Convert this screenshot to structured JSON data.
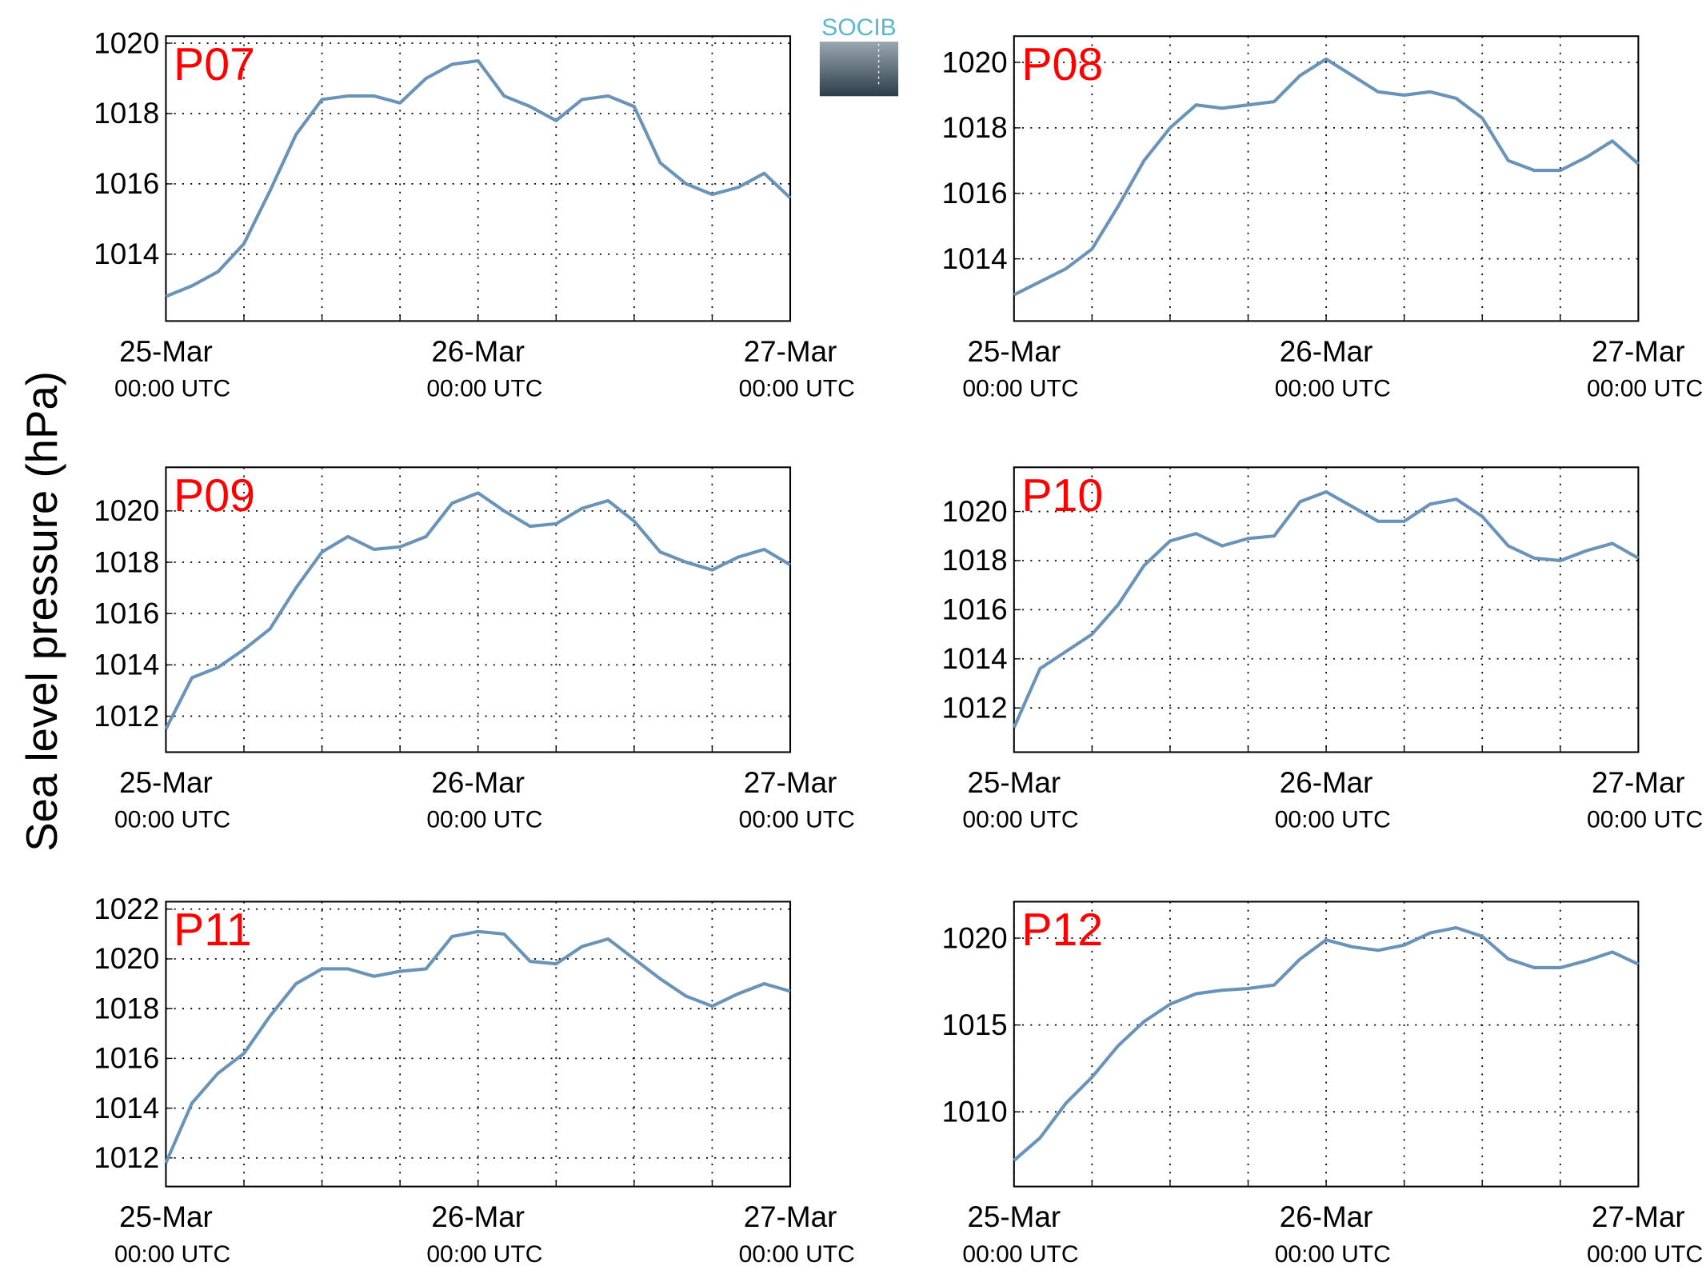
{
  "ylabel": "Sea level pressure (hPa)",
  "logo": "SOCIB",
  "chart_data": [
    {
      "type": "line",
      "title": "P07",
      "x": [
        0,
        2,
        4,
        6,
        8,
        10,
        12,
        14,
        16,
        18,
        20,
        22,
        24,
        26,
        28,
        30,
        32,
        34,
        36,
        38,
        40,
        42,
        44,
        46,
        48
      ],
      "series": [
        {
          "color": "#6a93b8",
          "values": [
            1012.8,
            1013.1,
            1013.5,
            1014.3,
            1015.8,
            1017.4,
            1018.4,
            1018.5,
            1018.5,
            1018.3,
            1019.0,
            1019.4,
            1019.5,
            1018.5,
            1018.2,
            1017.8,
            1018.4,
            1018.5,
            1018.2,
            1016.6,
            1016.0,
            1015.7,
            1015.9,
            1016.3,
            1015.6
          ]
        }
      ],
      "xlim": [
        0,
        48
      ],
      "xticks": [
        {
          "value": 0,
          "label": "25-Mar",
          "sublabel": "00:00 UTC"
        },
        {
          "value": 6,
          "label": null
        },
        {
          "value": 12,
          "label": null
        },
        {
          "value": 18,
          "label": null
        },
        {
          "value": 24,
          "label": "26-Mar",
          "sublabel": "00:00 UTC"
        },
        {
          "value": 30,
          "label": null
        },
        {
          "value": 36,
          "label": null
        },
        {
          "value": 42,
          "label": null
        },
        {
          "value": 48,
          "label": "27-Mar",
          "sublabel": "00:00 UTC"
        }
      ],
      "ylim": [
        1012.1,
        1020.2
      ],
      "yticks": [
        1014,
        1016,
        1018,
        1020
      ],
      "grid": true
    },
    {
      "type": "line",
      "title": "P08",
      "x": [
        0,
        2,
        4,
        6,
        8,
        10,
        12,
        14,
        16,
        18,
        20,
        22,
        24,
        26,
        28,
        30,
        32,
        34,
        36,
        38,
        40,
        42,
        44,
        46,
        48
      ],
      "series": [
        {
          "color": "#6a93b8",
          "values": [
            1012.9,
            1013.3,
            1013.7,
            1014.3,
            1015.6,
            1017.0,
            1018.0,
            1018.7,
            1018.6,
            1018.7,
            1018.8,
            1019.6,
            1020.1,
            1019.6,
            1019.1,
            1019.0,
            1019.1,
            1018.9,
            1018.3,
            1017.0,
            1016.7,
            1016.7,
            1017.1,
            1017.6,
            1016.9
          ]
        }
      ],
      "xlim": [
        0,
        48
      ],
      "xticks": [
        {
          "value": 0,
          "label": "25-Mar",
          "sublabel": "00:00 UTC"
        },
        {
          "value": 6,
          "label": null
        },
        {
          "value": 12,
          "label": null
        },
        {
          "value": 18,
          "label": null
        },
        {
          "value": 24,
          "label": "26-Mar",
          "sublabel": "00:00 UTC"
        },
        {
          "value": 30,
          "label": null
        },
        {
          "value": 36,
          "label": null
        },
        {
          "value": 42,
          "label": null
        },
        {
          "value": 48,
          "label": "27-Mar",
          "sublabel": "00:00 UTC"
        }
      ],
      "ylim": [
        1012.1,
        1020.8
      ],
      "yticks": [
        1014,
        1016,
        1018,
        1020
      ],
      "grid": true
    },
    {
      "type": "line",
      "title": "P09",
      "x": [
        0,
        2,
        4,
        6,
        8,
        10,
        12,
        14,
        16,
        18,
        20,
        22,
        24,
        26,
        28,
        30,
        32,
        34,
        36,
        38,
        40,
        42,
        44,
        46,
        48
      ],
      "series": [
        {
          "color": "#6a93b8",
          "values": [
            1011.5,
            1013.5,
            1013.9,
            1014.6,
            1015.4,
            1017.0,
            1018.4,
            1019.0,
            1018.5,
            1018.6,
            1019.0,
            1020.3,
            1020.7,
            1020.0,
            1019.4,
            1019.5,
            1020.1,
            1020.4,
            1019.6,
            1018.4,
            1018.0,
            1017.7,
            1018.2,
            1018.5,
            1017.9
          ]
        }
      ],
      "xlim": [
        0,
        48
      ],
      "xticks": [
        {
          "value": 0,
          "label": "25-Mar",
          "sublabel": "00:00 UTC"
        },
        {
          "value": 6,
          "label": null
        },
        {
          "value": 12,
          "label": null
        },
        {
          "value": 18,
          "label": null
        },
        {
          "value": 24,
          "label": "26-Mar",
          "sublabel": "00:00 UTC"
        },
        {
          "value": 30,
          "label": null
        },
        {
          "value": 36,
          "label": null
        },
        {
          "value": 42,
          "label": null
        },
        {
          "value": 48,
          "label": "27-Mar",
          "sublabel": "00:00 UTC"
        }
      ],
      "ylim": [
        1010.6,
        1021.7
      ],
      "yticks": [
        1012,
        1014,
        1016,
        1018,
        1020
      ],
      "grid": true
    },
    {
      "type": "line",
      "title": "P10",
      "x": [
        0,
        2,
        4,
        6,
        8,
        10,
        12,
        14,
        16,
        18,
        20,
        22,
        24,
        26,
        28,
        30,
        32,
        34,
        36,
        38,
        40,
        42,
        44,
        46,
        48
      ],
      "series": [
        {
          "color": "#6a93b8",
          "values": [
            1011.2,
            1013.6,
            1014.3,
            1015.0,
            1016.2,
            1017.8,
            1018.8,
            1019.1,
            1018.6,
            1018.9,
            1019.0,
            1020.4,
            1020.8,
            1020.2,
            1019.6,
            1019.6,
            1020.3,
            1020.5,
            1019.8,
            1018.6,
            1018.1,
            1018.0,
            1018.4,
            1018.7,
            1018.1
          ]
        }
      ],
      "xlim": [
        0,
        48
      ],
      "xticks": [
        {
          "value": 0,
          "label": "25-Mar",
          "sublabel": "00:00 UTC"
        },
        {
          "value": 6,
          "label": null
        },
        {
          "value": 12,
          "label": null
        },
        {
          "value": 18,
          "label": null
        },
        {
          "value": 24,
          "label": "26-Mar",
          "sublabel": "00:00 UTC"
        },
        {
          "value": 30,
          "label": null
        },
        {
          "value": 36,
          "label": null
        },
        {
          "value": 42,
          "label": null
        },
        {
          "value": 48,
          "label": "27-Mar",
          "sublabel": "00:00 UTC"
        }
      ],
      "ylim": [
        1010.2,
        1021.8
      ],
      "yticks": [
        1012,
        1014,
        1016,
        1018,
        1020
      ],
      "grid": true
    },
    {
      "type": "line",
      "title": "P11",
      "x": [
        0,
        2,
        4,
        6,
        8,
        10,
        12,
        14,
        16,
        18,
        20,
        22,
        24,
        26,
        28,
        30,
        32,
        34,
        36,
        38,
        40,
        42,
        44,
        46,
        48
      ],
      "series": [
        {
          "color": "#6a93b8",
          "values": [
            1011.8,
            1014.2,
            1015.4,
            1016.2,
            1017.7,
            1019.0,
            1019.6,
            1019.6,
            1019.3,
            1019.5,
            1019.6,
            1020.9,
            1021.1,
            1021.0,
            1019.9,
            1019.8,
            1020.5,
            1020.8,
            1020.0,
            1019.2,
            1018.5,
            1018.1,
            1018.6,
            1019.0,
            1018.7
          ]
        }
      ],
      "xlim": [
        0,
        48
      ],
      "xticks": [
        {
          "value": 0,
          "label": "25-Mar",
          "sublabel": "00:00 UTC"
        },
        {
          "value": 6,
          "label": null
        },
        {
          "value": 12,
          "label": null
        },
        {
          "value": 18,
          "label": null
        },
        {
          "value": 24,
          "label": "26-Mar",
          "sublabel": "00:00 UTC"
        },
        {
          "value": 30,
          "label": null
        },
        {
          "value": 36,
          "label": null
        },
        {
          "value": 42,
          "label": null
        },
        {
          "value": 48,
          "label": "27-Mar",
          "sublabel": "00:00 UTC"
        }
      ],
      "ylim": [
        1010.85,
        1022.3
      ],
      "yticks": [
        1012,
        1014,
        1016,
        1018,
        1020,
        1022
      ],
      "grid": true
    },
    {
      "type": "line",
      "title": "P12",
      "x": [
        0,
        2,
        4,
        6,
        8,
        10,
        12,
        14,
        16,
        18,
        20,
        22,
        24,
        26,
        28,
        30,
        32,
        34,
        36,
        38,
        40,
        42,
        44,
        46,
        48
      ],
      "series": [
        {
          "color": "#6a93b8",
          "values": [
            1007.2,
            1008.5,
            1010.5,
            1012.0,
            1013.8,
            1015.2,
            1016.2,
            1016.8,
            1017.0,
            1017.1,
            1017.3,
            1018.8,
            1019.9,
            1019.5,
            1019.3,
            1019.6,
            1020.3,
            1020.6,
            1020.1,
            1018.8,
            1018.3,
            1018.3,
            1018.7,
            1019.2,
            1018.5
          ]
        }
      ],
      "xlim": [
        0,
        48
      ],
      "xticks": [
        {
          "value": 0,
          "label": "25-Mar",
          "sublabel": "00:00 UTC"
        },
        {
          "value": 6,
          "label": null
        },
        {
          "value": 12,
          "label": null
        },
        {
          "value": 18,
          "label": null
        },
        {
          "value": 24,
          "label": "26-Mar",
          "sublabel": "00:00 UTC"
        },
        {
          "value": 30,
          "label": null
        },
        {
          "value": 36,
          "label": null
        },
        {
          "value": 42,
          "label": null
        },
        {
          "value": 48,
          "label": "27-Mar",
          "sublabel": "00:00 UTC"
        }
      ],
      "ylim": [
        1005.7,
        1022.1
      ],
      "yticks": [
        1010,
        1015,
        1020
      ],
      "grid": true
    }
  ]
}
